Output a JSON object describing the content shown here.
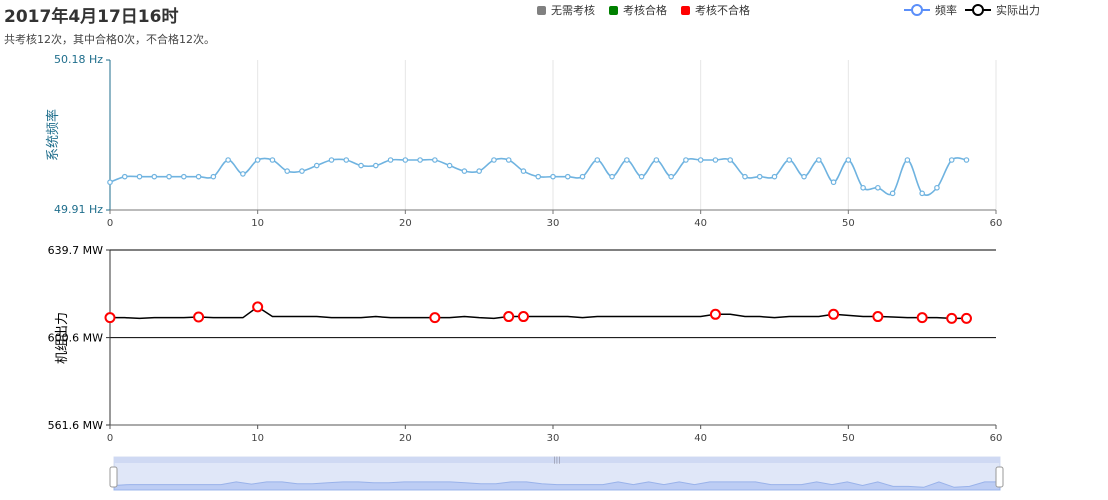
{
  "header": {
    "title": "2017年4月17日16时",
    "subtitle": "共考核12次，其中合格0次，不合格12次。"
  },
  "legend_status": [
    {
      "label": "无需考核",
      "color": "#808080"
    },
    {
      "label": "考核合格",
      "color": "#008000"
    },
    {
      "label": "考核不合格",
      "color": "#ff0000"
    }
  ],
  "legend_series": [
    {
      "label": "频率",
      "color": "#5b8ff9"
    },
    {
      "label": "实际出力",
      "color": "#000000"
    }
  ],
  "chart_data": [
    {
      "type": "line",
      "ylabel": "系统频率",
      "ylim": [
        49.91,
        50.18
      ],
      "y_tick_labels": [
        "50.18 Hz",
        "49.91 Hz"
      ],
      "xlim": [
        0,
        60
      ],
      "x_ticks": [
        0,
        10,
        20,
        30,
        40,
        50,
        60
      ],
      "grid_x": true,
      "smooth": true,
      "series": [
        {
          "color": "#6fb3e0",
          "x": [
            0,
            1,
            2,
            3,
            4,
            5,
            6,
            7,
            8,
            9,
            10,
            11,
            12,
            13,
            14,
            15,
            16,
            17,
            18,
            19,
            20,
            21,
            22,
            23,
            24,
            25,
            26,
            27,
            28,
            29,
            30,
            31,
            32,
            33,
            34,
            35,
            36,
            37,
            38,
            39,
            40,
            41,
            42,
            43,
            44,
            45,
            46,
            47,
            48,
            49,
            50,
            51,
            52,
            53,
            54,
            55,
            56,
            57,
            58
          ],
          "values": [
            49.96,
            49.97,
            49.97,
            49.97,
            49.97,
            49.97,
            49.97,
            49.97,
            50.0,
            49.975,
            50.0,
            50.0,
            49.98,
            49.98,
            49.99,
            50.0,
            50.0,
            49.99,
            49.99,
            50.0,
            50.0,
            50.0,
            50.0,
            49.99,
            49.98,
            49.98,
            50.0,
            50.0,
            49.98,
            49.97,
            49.97,
            49.97,
            49.97,
            50.0,
            49.97,
            50.0,
            49.97,
            50.0,
            49.97,
            50.0,
            50.0,
            50.0,
            50.0,
            49.97,
            49.97,
            49.97,
            50.0,
            49.97,
            50.0,
            49.96,
            50.0,
            49.95,
            49.95,
            49.94,
            50.0,
            49.94,
            49.95,
            50.0,
            50.0
          ]
        }
      ]
    },
    {
      "type": "line",
      "ylabel": "机组出力",
      "ylim": [
        561.6,
        639.7
      ],
      "y_ticks": [
        561.6,
        600.6,
        639.7
      ],
      "y_tick_labels": [
        "561.6 MW",
        "600.6 MW",
        "639.7 MW"
      ],
      "xlim": [
        0,
        60
      ],
      "x_ticks": [
        0,
        10,
        20,
        30,
        40,
        50,
        60
      ],
      "series": [
        {
          "color": "#000000",
          "x": [
            0,
            1,
            2,
            3,
            4,
            5,
            6,
            7,
            8,
            9,
            10,
            11,
            12,
            13,
            14,
            15,
            16,
            17,
            18,
            19,
            20,
            21,
            22,
            23,
            24,
            25,
            26,
            27,
            28,
            29,
            30,
            31,
            32,
            33,
            34,
            35,
            36,
            37,
            38,
            39,
            40,
            41,
            42,
            43,
            44,
            45,
            46,
            47,
            48,
            49,
            50,
            51,
            52,
            53,
            54,
            55,
            56,
            57,
            58
          ],
          "values": [
            609.5,
            609.5,
            609.2,
            609.5,
            609.5,
            609.5,
            609.8,
            609.5,
            609.5,
            609.5,
            614.3,
            610.0,
            610.0,
            610.0,
            610.0,
            609.5,
            609.5,
            609.5,
            610.0,
            609.5,
            609.5,
            609.5,
            609.5,
            609.5,
            610.0,
            609.5,
            609.2,
            610.0,
            610.0,
            610.0,
            610.0,
            610.0,
            609.5,
            610.0,
            610.0,
            610.0,
            610.0,
            610.0,
            610.0,
            610.0,
            610.0,
            611.0,
            611.0,
            610.0,
            610.0,
            609.5,
            610.0,
            610.0,
            610.0,
            611.0,
            610.5,
            610.0,
            610.0,
            609.8,
            609.5,
            609.5,
            609.5,
            609.2,
            609.2
          ]
        }
      ],
      "markers": {
        "status": "考核不合格",
        "color": "#ff0000",
        "x": [
          0,
          6,
          10,
          22,
          27,
          28,
          41,
          49,
          52,
          55,
          57,
          58
        ]
      }
    }
  ],
  "data_zoom": {
    "start_handle": "left-handle",
    "end_handle": "right-handle"
  }
}
